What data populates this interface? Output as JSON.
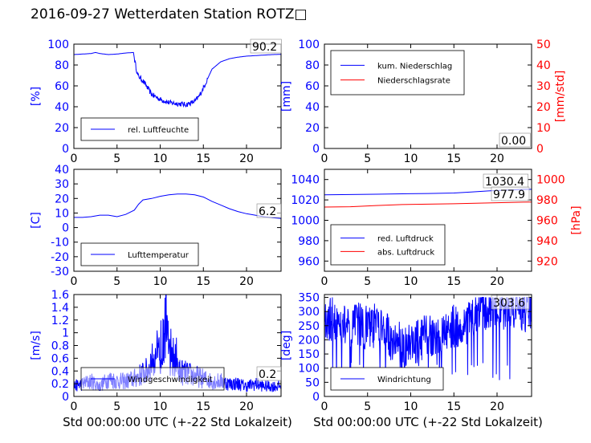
{
  "figure": {
    "title": "2016-09-27 Wetterdaten Station ROTZ",
    "title_glyph": "□",
    "colors": {
      "primary": "#0000ff",
      "secondary": "#ff0000",
      "axis": "#000000"
    }
  },
  "chart_data": [
    {
      "type": "line",
      "id": "humidity",
      "ylabel": "[%]",
      "xlim": [
        0,
        24
      ],
      "ylim": [
        0,
        100
      ],
      "xticks": [
        0,
        5,
        10,
        15,
        20
      ],
      "yticks": [
        0,
        20,
        40,
        60,
        80,
        100
      ],
      "last_value_label": "90.2",
      "legend": {
        "position": "lower-left",
        "entries": [
          "rel. Luftfeuchte"
        ]
      },
      "series": [
        {
          "name": "rel. Luftfeuchte",
          "color": "#0000ff",
          "x": [
            0,
            1,
            2,
            2.5,
            3,
            4,
            5,
            6,
            6.9,
            7.1,
            7.4,
            8,
            9,
            10,
            11,
            12,
            13,
            14,
            14.5,
            15,
            15.5,
            16,
            17,
            18,
            19,
            20,
            21,
            22,
            23,
            24
          ],
          "y": [
            90,
            90.5,
            91,
            92,
            91,
            90,
            90.5,
            91.5,
            92,
            82,
            70,
            65,
            52,
            47,
            44,
            43,
            42,
            45,
            50,
            58,
            67,
            76,
            83,
            86,
            87.5,
            88.5,
            89,
            89.5,
            90,
            90.2
          ]
        }
      ]
    },
    {
      "type": "line",
      "id": "precip",
      "ylabel": "[mm]",
      "y2label": "[mm/std]",
      "xlim": [
        0,
        24
      ],
      "ylim": [
        0,
        100
      ],
      "y2lim": [
        0,
        50
      ],
      "xticks": [
        0,
        5,
        10,
        15,
        20
      ],
      "yticks": [
        0,
        20,
        40,
        60,
        80,
        100
      ],
      "y2ticks": [
        0,
        10,
        20,
        30,
        40,
        50
      ],
      "last_value_label": "0.00",
      "legend": {
        "position": "upper-left",
        "entries": [
          "kum. Niederschlag",
          "Niederschlagsrate"
        ]
      },
      "series": [
        {
          "name": "kum. Niederschlag",
          "color": "#0000ff",
          "axis": "left",
          "x": [
            0,
            24
          ],
          "y": [
            0,
            0
          ]
        },
        {
          "name": "Niederschlagsrate",
          "color": "#ff0000",
          "axis": "right",
          "x": [
            0,
            24
          ],
          "y": [
            0,
            0
          ]
        }
      ]
    },
    {
      "type": "line",
      "id": "temperature",
      "ylabel": "[C]",
      "xlim": [
        0,
        24
      ],
      "ylim": [
        -30,
        40
      ],
      "xticks": [
        0,
        5,
        10,
        15,
        20
      ],
      "yticks": [
        -30,
        -20,
        -10,
        0,
        10,
        20,
        30,
        40
      ],
      "last_value_label": "6.2",
      "legend": {
        "position": "lower-left",
        "entries": [
          "Lufttemperatur"
        ]
      },
      "series": [
        {
          "name": "Lufttemperatur",
          "color": "#0000ff",
          "x": [
            0,
            1,
            2,
            3,
            4,
            5,
            6,
            7,
            7.5,
            8,
            9,
            10,
            11,
            12,
            13,
            14,
            15,
            16,
            17,
            18,
            19,
            20,
            21,
            22,
            23,
            24
          ],
          "y": [
            7,
            7,
            7.5,
            8.5,
            8.5,
            7.5,
            9,
            12,
            16,
            19,
            20,
            21.5,
            22.5,
            23,
            23,
            22.5,
            21,
            18,
            15.5,
            13,
            11,
            9.5,
            8.5,
            7.5,
            6.8,
            6.2
          ]
        }
      ]
    },
    {
      "type": "line",
      "id": "pressure",
      "ylabel": "[hPa]",
      "xlim": [
        0,
        24
      ],
      "ylim": [
        950,
        1050
      ],
      "y2lim": [
        910,
        1010
      ],
      "xticks": [
        0,
        5,
        10,
        15,
        20
      ],
      "yticks": [
        960,
        980,
        1000,
        1020,
        1040
      ],
      "y2ticks": [
        920,
        940,
        960,
        980,
        1000
      ],
      "value_labels": [
        "1030.4",
        "977.9"
      ],
      "legend": {
        "position": "lower-left",
        "entries": [
          "red. Luftdruck",
          "abs. Luftdruck"
        ]
      },
      "series": [
        {
          "name": "red. Luftdruck",
          "color": "#0000ff",
          "axis": "left",
          "x": [
            0,
            3,
            6,
            9,
            12,
            15,
            17,
            19,
            21,
            23,
            24
          ],
          "y": [
            1025,
            1025.3,
            1025.6,
            1026,
            1026.3,
            1026.8,
            1027.7,
            1028.8,
            1029.6,
            1030.2,
            1030.4
          ]
        },
        {
          "name": "abs. Luftdruck",
          "color": "#ff0000",
          "axis": "right",
          "x": [
            0,
            3,
            6,
            9,
            12,
            15,
            17,
            19,
            21,
            23,
            24
          ],
          "y": [
            973,
            973.3,
            974.5,
            975.4,
            975.8,
            976.2,
            976.6,
            977,
            977.4,
            977.8,
            977.9
          ]
        }
      ]
    },
    {
      "type": "line",
      "id": "wind-speed",
      "ylabel": "[m/s]",
      "xlabel": "Std 00:00:00 UTC (+-22 Std Lokalzeit)",
      "xlim": [
        0,
        24
      ],
      "ylim": [
        0,
        1.6
      ],
      "xticks": [
        0,
        5,
        10,
        15,
        20
      ],
      "yticks": [
        0,
        0.2,
        0.4,
        0.6,
        0.8,
        1.0,
        1.2,
        1.4,
        1.6
      ],
      "last_value_label": "0.2",
      "legend": {
        "position": "lower-left",
        "entries": [
          "Windgeschwindigkeit"
        ]
      },
      "series": [
        {
          "name": "Windgeschwindigkeit",
          "color": "#0000ff",
          "x": [
            0,
            1,
            2,
            3,
            4,
            5,
            6,
            7,
            8,
            8.5,
            9,
            9.5,
            10,
            10.5,
            11,
            11.5,
            12,
            13,
            14,
            15,
            16,
            17,
            18,
            19,
            20,
            21,
            22,
            23,
            24
          ],
          "y": [
            0.2,
            0.25,
            0.3,
            0.2,
            0.35,
            0.3,
            0.3,
            0.35,
            0.45,
            0.5,
            0.7,
            0.6,
            0.9,
            1.4,
            0.8,
            0.6,
            0.5,
            0.45,
            0.4,
            0.35,
            0.3,
            0.3,
            0.25,
            0.25,
            0.2,
            0.25,
            0.2,
            0.2,
            0.2
          ]
        }
      ]
    },
    {
      "type": "line",
      "id": "wind-direction",
      "ylabel": "[deg]",
      "xlabel": "Std 00:00:00 UTC (+-22 Std Lokalzeit)",
      "xlim": [
        0,
        24
      ],
      "ylim": [
        0,
        360
      ],
      "xticks": [
        0,
        5,
        10,
        15,
        20
      ],
      "yticks": [
        0,
        50,
        100,
        150,
        200,
        250,
        300,
        350
      ],
      "last_value_label": "303.6",
      "legend": {
        "position": "lower-left",
        "entries": [
          "Windrichtung"
        ]
      },
      "series": [
        {
          "name": "Windrichtung",
          "color": "#0000ff",
          "x": [
            0,
            1,
            2,
            3,
            4,
            5,
            6,
            7,
            8,
            9,
            10,
            11,
            12,
            13,
            14,
            15,
            16,
            17,
            18,
            19,
            20,
            21,
            22,
            23,
            24
          ],
          "y": [
            250,
            280,
            260,
            230,
            260,
            240,
            250,
            220,
            200,
            180,
            190,
            200,
            210,
            190,
            230,
            250,
            240,
            280,
            300,
            310,
            320,
            310,
            320,
            300,
            303.6
          ]
        }
      ]
    }
  ]
}
